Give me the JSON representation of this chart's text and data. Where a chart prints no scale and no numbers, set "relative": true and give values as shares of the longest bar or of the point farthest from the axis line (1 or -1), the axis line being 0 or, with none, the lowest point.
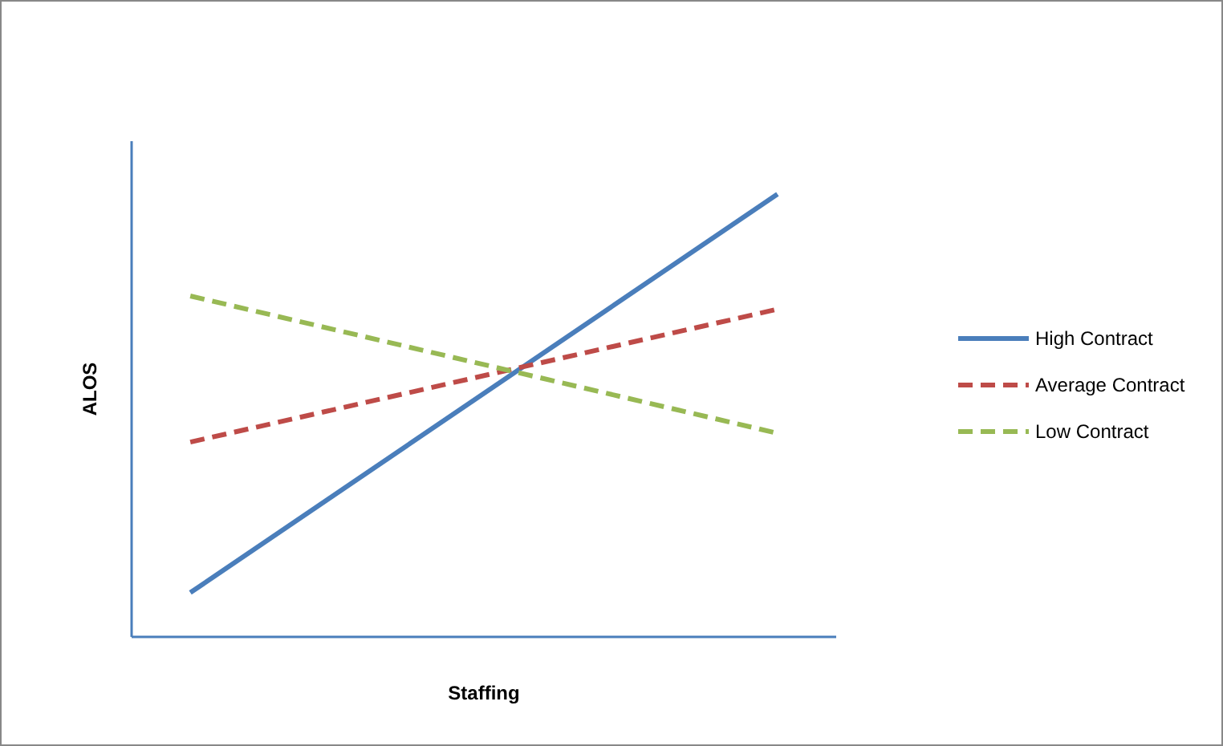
{
  "chart_data": {
    "type": "line",
    "xlabel": "Staffing",
    "ylabel": "ALOS",
    "relative": true,
    "categories": [
      null,
      null
    ],
    "legend": "right",
    "series": [
      {
        "name": "High Contract",
        "color": "#4a7ebb",
        "values": [
          0.1,
          1
        ],
        "line_style": "solid"
      },
      {
        "name": "Average Contract",
        "color": "#be4b48",
        "values": [
          0.44,
          0.74
        ],
        "line_style": "dashed"
      },
      {
        "name": "Low Contract",
        "color": "#98b954",
        "values": [
          0.77,
          0.46
        ],
        "line_style": "dashed"
      }
    ]
  }
}
